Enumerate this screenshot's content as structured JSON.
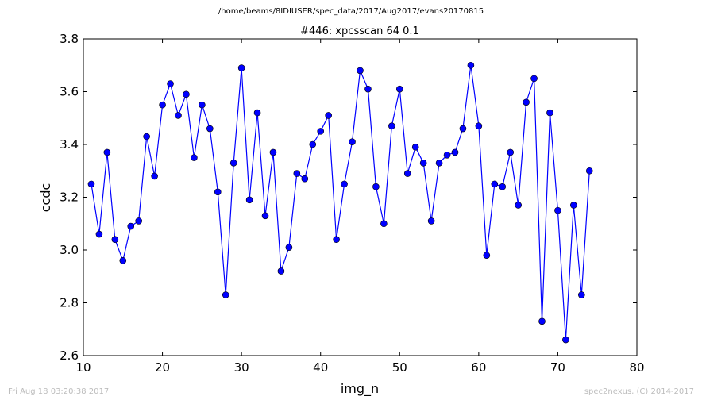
{
  "suptitle": "/home/beams/8IDIUSER/spec_data/2017/Aug2017/evans20170815",
  "footer": {
    "timestamp": "Fri Aug 18 03:20:38 2017",
    "credit": "spec2nexus, (C) 2014-2017"
  },
  "chart_data": {
    "type": "line",
    "title": "#446: xpcsscan 64 0.1",
    "xlabel": "img_n",
    "ylabel": "ccdc",
    "xlim": [
      10,
      80
    ],
    "ylim": [
      2.6,
      3.8
    ],
    "xticks": [
      10,
      20,
      30,
      40,
      50,
      60,
      70,
      80
    ],
    "yticks": [
      2.6,
      2.8,
      3.0,
      3.2,
      3.4,
      3.6,
      3.8
    ],
    "ytick_labels": [
      "2.6",
      "2.8",
      "3.0",
      "3.2",
      "3.4",
      "3.6",
      "3.8"
    ],
    "grid": false,
    "line_color": "#0000ff",
    "marker_color": "#0000ff",
    "series": [
      {
        "x": [
          11,
          12,
          13,
          14,
          15,
          16,
          17,
          18,
          19,
          20,
          21,
          22,
          23,
          24,
          25,
          26,
          27,
          28,
          29,
          30,
          31,
          32,
          33,
          34,
          35,
          36,
          37,
          38,
          39,
          40,
          41,
          42,
          43,
          44,
          45,
          46,
          47,
          48,
          49,
          50,
          51,
          52,
          53,
          54,
          55,
          56,
          57,
          58,
          59,
          60,
          61,
          62,
          63,
          64,
          65,
          66,
          67,
          68,
          69,
          70,
          71,
          72,
          73,
          74
        ],
        "y": [
          3.25,
          3.06,
          3.37,
          3.04,
          2.96,
          3.09,
          3.11,
          3.43,
          3.28,
          3.55,
          3.63,
          3.51,
          3.59,
          3.35,
          3.55,
          3.46,
          3.22,
          2.83,
          3.33,
          3.69,
          3.19,
          3.52,
          3.13,
          3.37,
          2.92,
          3.01,
          3.29,
          3.27,
          3.4,
          3.45,
          3.51,
          3.04,
          3.25,
          3.41,
          3.68,
          3.61,
          3.24,
          3.1,
          3.47,
          3.61,
          3.29,
          3.39,
          3.33,
          3.11,
          3.33,
          3.36,
          3.37,
          3.46,
          3.7,
          3.47,
          2.98,
          3.25,
          3.24,
          3.37,
          3.17,
          3.56,
          3.65,
          2.73,
          3.52,
          3.15,
          2.66,
          3.17,
          2.83,
          3.3
        ]
      }
    ]
  }
}
